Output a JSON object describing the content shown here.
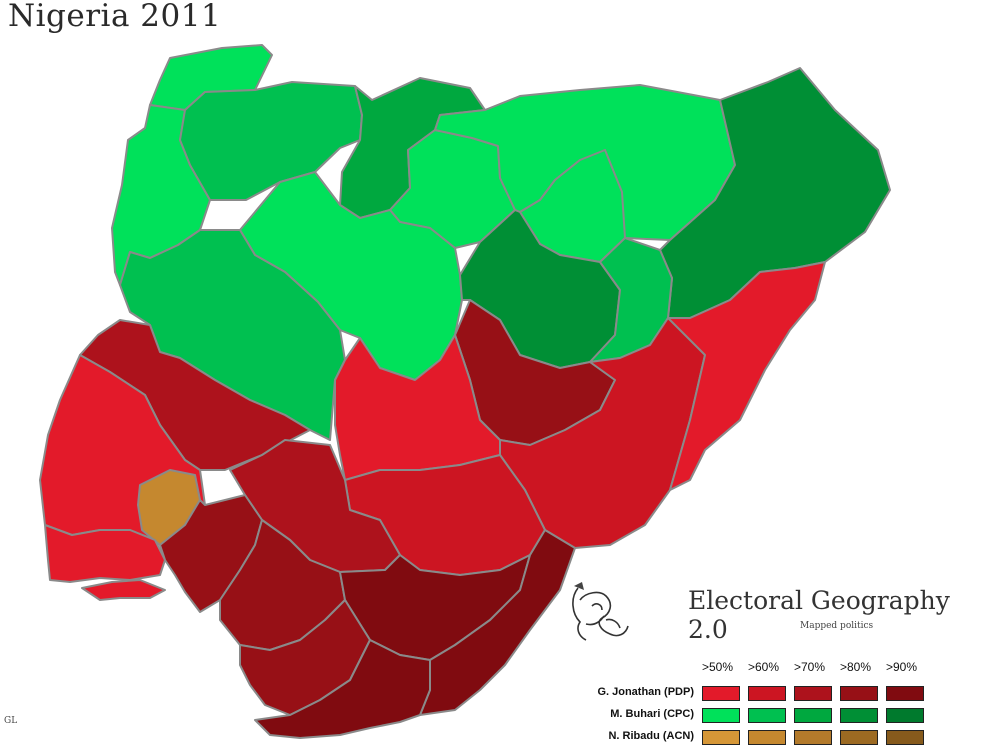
{
  "title": "Nigeria 2011",
  "branding": {
    "name": "Electoral Geography 2.0",
    "tagline": "Mapped politics"
  },
  "credit": "GL",
  "colors": {
    "pdp": [
      "#e31a2a",
      "#cc1522",
      "#ad121c",
      "#971016",
      "#800b10"
    ],
    "cpc": [
      "#00e15a",
      "#00c050",
      "#00a83f",
      "#008f35",
      "#007a2d"
    ],
    "acn": [
      "#d69737",
      "#c5882f",
      "#b37a2b",
      "#9c6a22",
      "#865a1c"
    ],
    "border": "#8a8a8a"
  },
  "legend": {
    "headers": [
      ">50%",
      ">60%",
      ">70%",
      ">80%",
      ">90%"
    ],
    "rows": [
      {
        "label": "G. Jonathan (PDP)",
        "key": "pdp"
      },
      {
        "label": "M. Buhari (CPC)",
        "key": "cpc"
      },
      {
        "label": "N. Ribadu (ACN)",
        "key": "acn"
      }
    ]
  },
  "regions": [
    {
      "name": "Sokoto",
      "winner": "cpc",
      "level": 0
    },
    {
      "name": "Kebbi",
      "winner": "cpc",
      "level": 0
    },
    {
      "name": "Zamfara",
      "winner": "cpc",
      "level": 1
    },
    {
      "name": "Katsina",
      "winner": "cpc",
      "level": 2
    },
    {
      "name": "Kano",
      "winner": "cpc",
      "level": 0
    },
    {
      "name": "Jigawa",
      "winner": "cpc",
      "level": 0
    },
    {
      "name": "Yobe",
      "winner": "cpc",
      "level": 0
    },
    {
      "name": "Borno",
      "winner": "cpc",
      "level": 3
    },
    {
      "name": "Kaduna",
      "winner": "cpc",
      "level": 0
    },
    {
      "name": "Bauchi",
      "winner": "cpc",
      "level": 3
    },
    {
      "name": "Gombe",
      "winner": "cpc",
      "level": 1
    },
    {
      "name": "Niger",
      "winner": "cpc",
      "level": 1
    },
    {
      "name": "Kwara",
      "winner": "pdp",
      "level": 2
    },
    {
      "name": "Oyo",
      "winner": "pdp",
      "level": 0
    },
    {
      "name": "Osun",
      "winner": "acn",
      "level": 1
    },
    {
      "name": "Plateau",
      "winner": "pdp",
      "level": 3
    },
    {
      "name": "Taraba",
      "winner": "pdp",
      "level": 1
    },
    {
      "name": "Adamawa",
      "winner": "pdp",
      "level": 0
    },
    {
      "name": "Nasarawa",
      "winner": "pdp",
      "level": 0
    },
    {
      "name": "Benue",
      "winner": "pdp",
      "level": 1
    },
    {
      "name": "Kogi",
      "winner": "pdp",
      "level": 2
    },
    {
      "name": "Ogun",
      "winner": "pdp",
      "level": 0
    },
    {
      "name": "Lagos",
      "winner": "pdp",
      "level": 0
    },
    {
      "name": "Ondo-Ekiti",
      "winner": "pdp",
      "level": 3
    },
    {
      "name": "Edo",
      "winner": "pdp",
      "level": 3
    },
    {
      "name": "Southeast",
      "winner": "pdp",
      "level": 4
    },
    {
      "name": "Delta",
      "winner": "pdp",
      "level": 3
    },
    {
      "name": "Cross River",
      "winner": "pdp",
      "level": 4
    },
    {
      "name": "Niger Delta",
      "winner": "pdp",
      "level": 4
    }
  ]
}
